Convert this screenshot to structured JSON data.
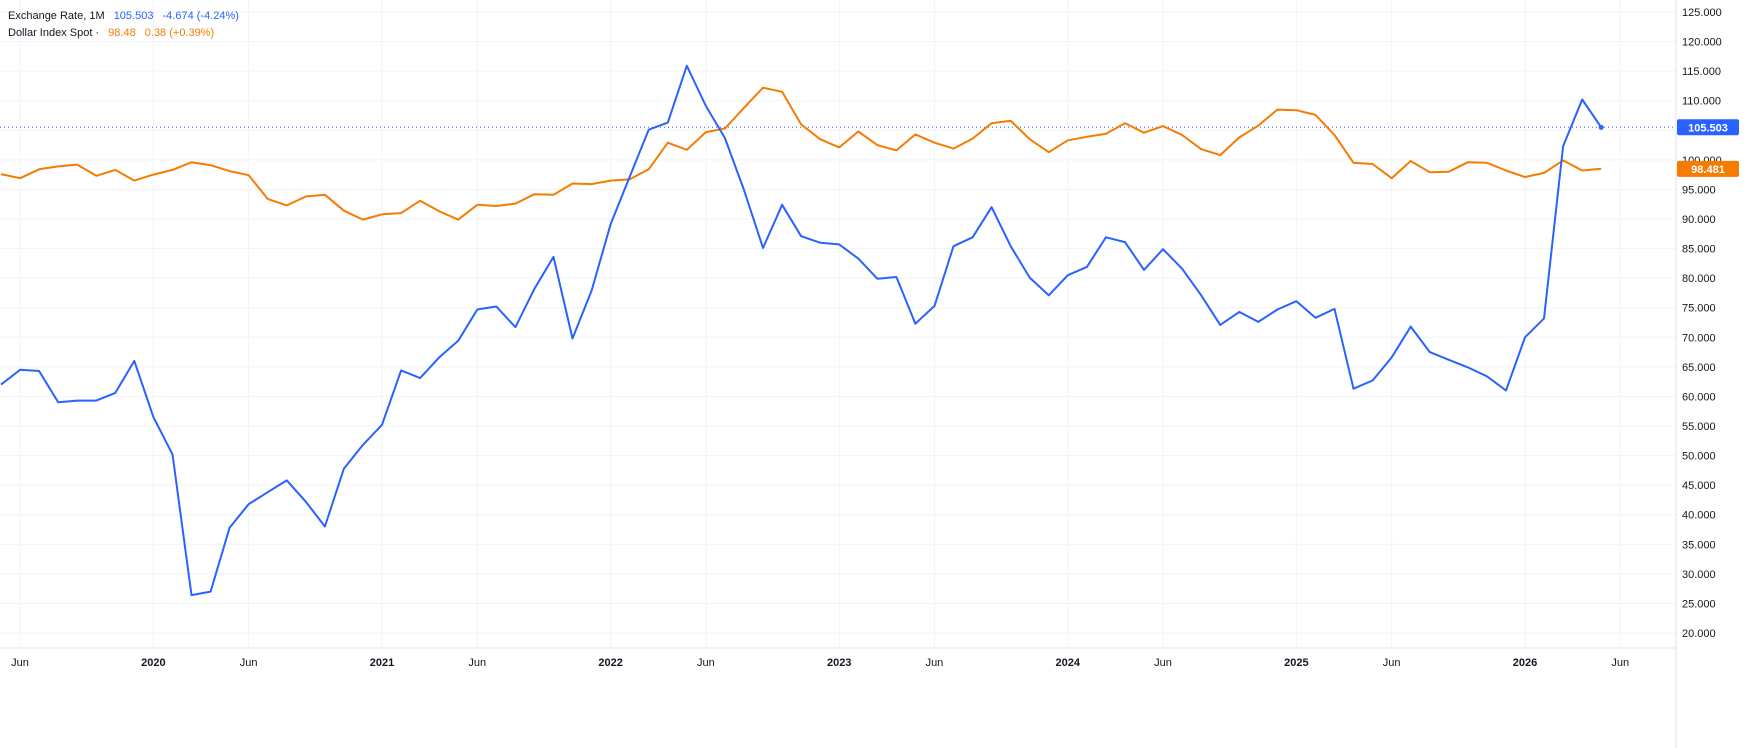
{
  "legend": {
    "series1": {
      "name": "Exchange Rate, 1M",
      "value": "105.503",
      "change": "-4.674 (-4.24%)",
      "color": "#2962ff"
    },
    "series2": {
      "name": "Dollar Index Spot ·",
      "value": "98.48",
      "change": "0.38 (+0.39%)",
      "color": "#f57c00"
    }
  },
  "chart_data": {
    "type": "line",
    "y_axis": {
      "position": "right",
      "ylim": [
        18,
        127
      ],
      "ticks": [
        20,
        25,
        30,
        35,
        40,
        45,
        50,
        55,
        60,
        65,
        70,
        75,
        80,
        85,
        90,
        95,
        100,
        105,
        110,
        115,
        120,
        125
      ],
      "tick_labels": [
        "20.000",
        "25.000",
        "30.000",
        "35.000",
        "40.000",
        "45.000",
        "50.000",
        "55.000",
        "60.000",
        "65.000",
        "70.000",
        "75.000",
        "80.000",
        "85.000",
        "90.000",
        "95.000",
        "100.000",
        "105.000",
        "110.000",
        "115.000",
        "120.000",
        "125.000"
      ]
    },
    "x_axis": {
      "tick_labels": [
        {
          "label": "Jun",
          "x": "2019-06",
          "year": false
        },
        {
          "label": "2020",
          "x": "2020-01",
          "year": true
        },
        {
          "label": "Jun",
          "x": "2020-06",
          "year": false
        },
        {
          "label": "2021",
          "x": "2021-01",
          "year": true
        },
        {
          "label": "Jun",
          "x": "2021-06",
          "year": false
        },
        {
          "label": "2022",
          "x": "2022-01",
          "year": true
        },
        {
          "label": "Jun",
          "x": "2022-06",
          "year": false
        },
        {
          "label": "2023",
          "x": "2023-01",
          "year": true
        },
        {
          "label": "Jun",
          "x": "2023-06",
          "year": false
        },
        {
          "label": "2024",
          "x": "2024-01",
          "year": true
        },
        {
          "label": "Jun",
          "x": "2024-06",
          "year": false
        },
        {
          "label": "2025",
          "x": "2025-01",
          "year": true
        },
        {
          "label": "Jun",
          "x": "2025-06",
          "year": false
        },
        {
          "label": "2026",
          "x": "2026-01",
          "year": true
        },
        {
          "label": "Jun",
          "x": "2026-06",
          "year": false
        }
      ]
    },
    "x": [
      "2019-05",
      "2019-06",
      "2019-07",
      "2019-08",
      "2019-09",
      "2019-10",
      "2019-11",
      "2019-12",
      "2020-01",
      "2020-02",
      "2020-03",
      "2020-04",
      "2020-05",
      "2020-06",
      "2020-07",
      "2020-08",
      "2020-09",
      "2020-10",
      "2020-11",
      "2020-12",
      "2021-01",
      "2021-02",
      "2021-03",
      "2021-04",
      "2021-05",
      "2021-06",
      "2021-07",
      "2021-08",
      "2021-09",
      "2021-10",
      "2021-11",
      "2021-12",
      "2022-01",
      "2022-02",
      "2022-03",
      "2022-04",
      "2022-05",
      "2022-06",
      "2022-07",
      "2022-08",
      "2022-09",
      "2022-10",
      "2022-11",
      "2022-12",
      "2023-01",
      "2023-02",
      "2023-03",
      "2023-04",
      "2023-05",
      "2023-06",
      "2023-07",
      "2023-08",
      "2023-09",
      "2023-10",
      "2023-11",
      "2023-12",
      "2024-01",
      "2024-02",
      "2024-03",
      "2024-04",
      "2024-05",
      "2024-06",
      "2024-07",
      "2024-08",
      "2024-09",
      "2024-10",
      "2024-11",
      "2024-12",
      "2025-01",
      "2025-02",
      "2025-03",
      "2025-04",
      "2025-05",
      "2025-06",
      "2025-07",
      "2025-08",
      "2025-09",
      "2025-10",
      "2025-11",
      "2025-12",
      "2026-01",
      "2026-02",
      "2026-03",
      "2026-04",
      "2026-05"
    ],
    "series": [
      {
        "name": "Exchange Rate, 1M",
        "color": "#2962ff",
        "values": [
          62,
          64.5,
          64.3,
          59,
          59.3,
          59.3,
          60.6,
          66,
          56.5,
          50.2,
          26.4,
          27,
          37.8,
          41.8,
          43.8,
          45.8,
          42.2,
          38,
          47.8,
          51.8,
          55.2,
          64.4,
          63.1,
          66.6,
          69.4,
          74.7,
          75.2,
          71.7,
          78.2,
          83.6,
          69.8,
          77.9,
          89.1,
          97.1,
          105.1,
          106.3,
          115.9,
          109.1,
          103.7,
          94.9,
          85.1,
          92.4,
          87.1,
          86,
          85.7,
          83.3,
          79.9,
          80.2,
          72.3,
          75.3,
          85.4,
          86.9,
          92,
          85.4,
          80.1,
          77.1,
          80.5,
          81.9,
          86.9,
          86.1,
          81.4,
          84.9,
          81.6,
          77.1,
          72.1,
          74.3,
          72.6,
          74.7,
          76.1,
          73.3,
          74.8,
          61.3,
          62.7,
          66.6,
          71.8,
          67.5,
          66.2,
          64.9,
          63.4,
          61,
          70,
          73.2,
          102.3,
          110.2,
          105.5
        ]
      },
      {
        "name": "Dollar Index Spot",
        "color": "#f57c00",
        "values": [
          97.6,
          96.9,
          98.4,
          98.9,
          99.2,
          97.3,
          98.3,
          96.5,
          97.5,
          98.3,
          99.6,
          99.1,
          98.1,
          97.4,
          93.4,
          92.3,
          93.8,
          94.1,
          91.4,
          89.9,
          90.8,
          91,
          93.1,
          91.3,
          89.9,
          92.4,
          92.2,
          92.6,
          94.2,
          94.1,
          96,
          95.9,
          96.5,
          96.7,
          98.4,
          102.9,
          101.7,
          104.7,
          105.3,
          108.8,
          112.2,
          111.5,
          106,
          103.5,
          102.1,
          104.8,
          102.5,
          101.6,
          104.3,
          102.9,
          101.9,
          103.6,
          106.2,
          106.6,
          103.5,
          101.3,
          103.3,
          103.9,
          104.4,
          106.2,
          104.6,
          105.7,
          104.2,
          101.8,
          100.8,
          103.8,
          105.8,
          108.5,
          108.4,
          107.6,
          104.2,
          99.5,
          99.3,
          96.9,
          99.8,
          97.9,
          98,
          99.6,
          99.5,
          98.2,
          97.1,
          97.8,
          99.9,
          98.2,
          98.48
        ]
      }
    ],
    "last_value_labels": [
      {
        "series": "Exchange Rate, 1M",
        "value": 105.503,
        "text": "105.503",
        "color": "#2962ff"
      },
      {
        "series": "Dollar Index Spot",
        "value": 98.481,
        "text": "98.481",
        "color": "#f57c00"
      }
    ],
    "grid": true,
    "crosshair_value": 105.503
  }
}
